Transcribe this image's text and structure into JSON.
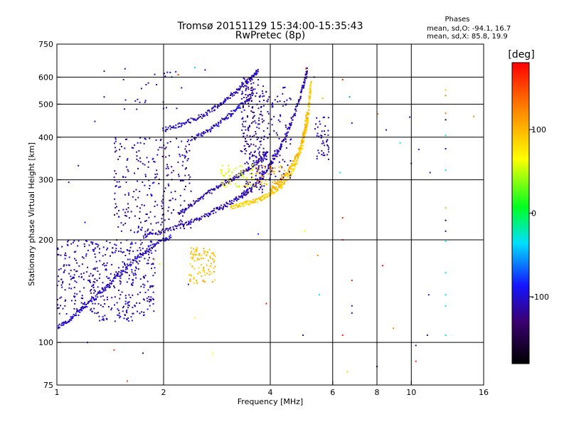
{
  "chart_data": {
    "type": "scatter",
    "title": "Tromsø 20151129 15:34:00-15:35:43",
    "subtitle": "RwPretec (8p)",
    "xlabel": "Frequency [MHz]",
    "ylabel": "Stationary phase Virtual Height [km]",
    "xscale": "log",
    "yscale": "log",
    "xlim": [
      1,
      16
    ],
    "ylim": [
      75,
      750
    ],
    "xticks": [
      1,
      2,
      4,
      6,
      8,
      10,
      16
    ],
    "xtick_labels": [
      "1",
      "2",
      "4",
      "6",
      "8",
      "10",
      "16"
    ],
    "yticks": [
      75,
      100,
      200,
      300,
      400,
      500,
      600,
      750
    ],
    "ytick_labels": [
      "75",
      "100",
      "200",
      "300",
      "400",
      "500",
      "600",
      "750"
    ],
    "grid": true,
    "phases_box": {
      "title": "Phases",
      "line_o": "mean, sd,O: -94.1, 16.7",
      "line_x": "mean, sd,X:  85.8, 19.9"
    },
    "colorbar": {
      "label": "[deg]",
      "range": [
        -180,
        180
      ],
      "ticks": [
        100,
        0,
        -100
      ],
      "tick_labels": [
        "100",
        "0",
        "-100"
      ]
    },
    "traces": [
      {
        "kind": "curve",
        "phase": -105,
        "points": [
          [
            1.0,
            110
          ],
          [
            1.1,
            118
          ],
          [
            1.2,
            128
          ],
          [
            1.35,
            142
          ],
          [
            1.5,
            158
          ],
          [
            1.7,
            178
          ],
          [
            1.9,
            195
          ],
          [
            2.1,
            205
          ]
        ]
      },
      {
        "kind": "curve",
        "phase": -112,
        "points": [
          [
            1.75,
            205
          ],
          [
            2.0,
            212
          ],
          [
            2.3,
            222
          ],
          [
            2.6,
            235
          ],
          [
            2.9,
            248
          ],
          [
            3.2,
            262
          ],
          [
            3.5,
            280
          ],
          [
            3.8,
            305
          ],
          [
            4.1,
            345
          ],
          [
            4.4,
            400
          ],
          [
            4.7,
            470
          ],
          [
            4.95,
            560
          ],
          [
            5.1,
            640
          ]
        ]
      },
      {
        "kind": "curve",
        "phase": -115,
        "points": [
          [
            2.2,
            238
          ],
          [
            2.5,
            262
          ],
          [
            2.8,
            282
          ],
          [
            3.1,
            300
          ],
          [
            3.4,
            318
          ],
          [
            3.7,
            340
          ],
          [
            3.95,
            365
          ]
        ]
      },
      {
        "kind": "curve",
        "phase": -110,
        "points": [
          [
            2.0,
            420
          ],
          [
            2.3,
            440
          ],
          [
            2.6,
            465
          ],
          [
            2.9,
            500
          ],
          [
            3.2,
            545
          ],
          [
            3.5,
            590
          ],
          [
            3.7,
            630
          ]
        ]
      },
      {
        "kind": "curve",
        "phase": -108,
        "points": [
          [
            2.4,
            395
          ],
          [
            2.7,
            420
          ],
          [
            3.0,
            455
          ],
          [
            3.3,
            495
          ],
          [
            3.6,
            540
          ]
        ]
      },
      {
        "kind": "curve",
        "phase": 85,
        "points": [
          [
            3.1,
            250
          ],
          [
            3.4,
            255
          ],
          [
            3.7,
            262
          ],
          [
            4.0,
            272
          ],
          [
            4.3,
            288
          ],
          [
            4.6,
            315
          ],
          [
            4.85,
            360
          ],
          [
            5.05,
            420
          ],
          [
            5.15,
            500
          ],
          [
            5.2,
            580
          ]
        ]
      },
      {
        "kind": "curve",
        "phase": 95,
        "points": [
          [
            4.0,
            280
          ],
          [
            4.3,
            300
          ],
          [
            4.6,
            330
          ],
          [
            4.85,
            370
          ],
          [
            5.0,
            420
          ],
          [
            5.1,
            480
          ]
        ]
      },
      {
        "kind": "cluster",
        "phase": -112,
        "x": [
          1.0,
          1.9
        ],
        "y": [
          120,
          200
        ],
        "n": 430
      },
      {
        "kind": "cluster",
        "phase": -115,
        "x": [
          1.45,
          2.4
        ],
        "y": [
          210,
          400
        ],
        "n": 260
      },
      {
        "kind": "cluster",
        "phase": -118,
        "x": [
          3.3,
          3.85
        ],
        "y": [
          270,
          600
        ],
        "n": 230
      },
      {
        "kind": "cluster",
        "phase": -112,
        "x": [
          3.85,
          4.6
        ],
        "y": [
          300,
          560
        ],
        "n": 90
      },
      {
        "kind": "cluster",
        "phase": 55,
        "x": [
          2.9,
          3.6
        ],
        "y": [
          285,
          335
        ],
        "n": 70
      },
      {
        "kind": "cluster",
        "phase": 90,
        "x": [
          2.35,
          2.8
        ],
        "y": [
          148,
          190
        ],
        "n": 95
      },
      {
        "kind": "cluster",
        "phase": 100,
        "x": [
          3.6,
          4.4
        ],
        "y": [
          290,
          330
        ],
        "n": 40
      },
      {
        "kind": "cluster",
        "phase": -105,
        "x": [
          1.3,
          1.65
        ],
        "y": [
          115,
          122
        ],
        "n": 25
      },
      {
        "kind": "cluster",
        "phase": -110,
        "x": [
          5.35,
          5.85
        ],
        "y": [
          340,
          460
        ],
        "n": 45
      },
      {
        "kind": "cluster",
        "phase": -110,
        "x": [
          1.5,
          2.3
        ],
        "y": [
          480,
          640
        ],
        "n": 25
      }
    ],
    "scattered_points": [
      [
        1.36,
        625,
        -115
      ],
      [
        1.36,
        525,
        -120
      ],
      [
        1.28,
        445,
        -108
      ],
      [
        1.15,
        330,
        -115
      ],
      [
        1.08,
        295,
        -105
      ],
      [
        1.22,
        100,
        -95
      ],
      [
        1.45,
        95,
        160
      ],
      [
        1.75,
        93,
        -120
      ],
      [
        1.58,
        77,
        150
      ],
      [
        1.2,
        225,
        -90
      ],
      [
        2.45,
        640,
        -40
      ],
      [
        2.62,
        630,
        -110
      ],
      [
        2.05,
        620,
        -110
      ],
      [
        2.2,
        610,
        150
      ],
      [
        3.45,
        575,
        -110
      ],
      [
        5.05,
        635,
        170
      ],
      [
        5.32,
        600,
        -115
      ],
      [
        5.62,
        520,
        100
      ],
      [
        6.4,
        590,
        170
      ],
      [
        6.7,
        525,
        -60
      ],
      [
        6.8,
        440,
        -100
      ],
      [
        8.05,
        468,
        120
      ],
      [
        8.5,
        420,
        -110
      ],
      [
        9.9,
        458,
        -100
      ],
      [
        11.3,
        315,
        -100
      ],
      [
        12.5,
        550,
        90
      ],
      [
        12.5,
        530,
        120
      ],
      [
        12.5,
        470,
        130
      ],
      [
        12.5,
        450,
        -160
      ],
      [
        12.5,
        405,
        -30
      ],
      [
        12.5,
        370,
        -100
      ],
      [
        12.5,
        320,
        -40
      ],
      [
        12.5,
        248,
        100
      ],
      [
        12.5,
        228,
        -160
      ],
      [
        12.5,
        212,
        -110
      ],
      [
        12.5,
        198,
        -40
      ],
      [
        12.5,
        160,
        -40
      ],
      [
        12.5,
        138,
        -40
      ],
      [
        12.5,
        128,
        -40
      ],
      [
        12.5,
        105,
        -40
      ],
      [
        11.2,
        138,
        -90
      ],
      [
        11.1,
        105,
        -120
      ],
      [
        10.3,
        98,
        -110
      ],
      [
        10.3,
        88,
        160
      ],
      [
        10.0,
        335,
        -110
      ],
      [
        10.5,
        368,
        -90
      ],
      [
        8.9,
        110,
        120
      ],
      [
        8.0,
        85,
        -110
      ],
      [
        8.3,
        168,
        170
      ],
      [
        9.3,
        385,
        -40
      ],
      [
        6.3,
        315,
        -40
      ],
      [
        6.4,
        232,
        170
      ],
      [
        6.4,
        200,
        150
      ],
      [
        6.8,
        152,
        170
      ],
      [
        6.8,
        128,
        -110
      ],
      [
        6.8,
        122,
        -110
      ],
      [
        6.4,
        105,
        170
      ],
      [
        6.6,
        82,
        80
      ],
      [
        5.0,
        212,
        60
      ],
      [
        5.45,
        180,
        120
      ],
      [
        5.5,
        138,
        -40
      ],
      [
        4.95,
        105,
        -110
      ],
      [
        3.9,
        130,
        170
      ],
      [
        3.7,
        208,
        -80
      ],
      [
        2.75,
        93,
        60
      ],
      [
        2.45,
        118,
        60
      ],
      [
        2.35,
        148,
        -110
      ],
      [
        1.88,
        175,
        120
      ],
      [
        1.95,
        170,
        80
      ],
      [
        15.0,
        460,
        120
      ]
    ]
  }
}
